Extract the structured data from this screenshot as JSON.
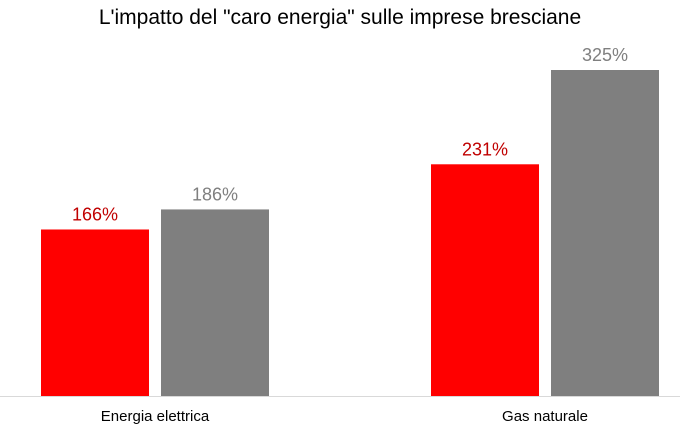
{
  "chart_data": {
    "type": "bar",
    "title": "L'impatto del \"caro energia\" sulle imprese bresciane",
    "categories": [
      "Energia elettrica",
      "Gas naturale"
    ],
    "series": [
      {
        "values": [
          166,
          231
        ],
        "labels": [
          "166%",
          "231%"
        ],
        "color": "#ff0000",
        "label_color": "#c00000"
      },
      {
        "values": [
          186,
          325
        ],
        "labels": [
          "186%",
          "325%"
        ],
        "color": "#7f7f7f",
        "label_color": "#7f7f7f"
      }
    ],
    "ylim": [
      0,
      325
    ],
    "grid": false,
    "legend": "none"
  }
}
